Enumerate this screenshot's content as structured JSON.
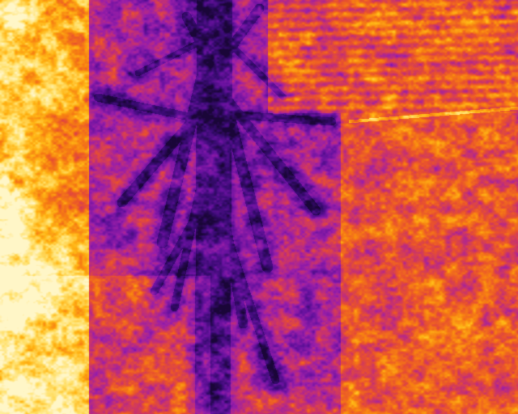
{
  "image": {
    "kind": "thermal-aerial-view",
    "palette": [
      "#1a0638",
      "#3a0b74",
      "#6a12a0",
      "#9a1fa8",
      "#c8326e",
      "#e8502f",
      "#f77f12",
      "#ffb515",
      "#ffe06a",
      "#fff6c8"
    ]
  }
}
